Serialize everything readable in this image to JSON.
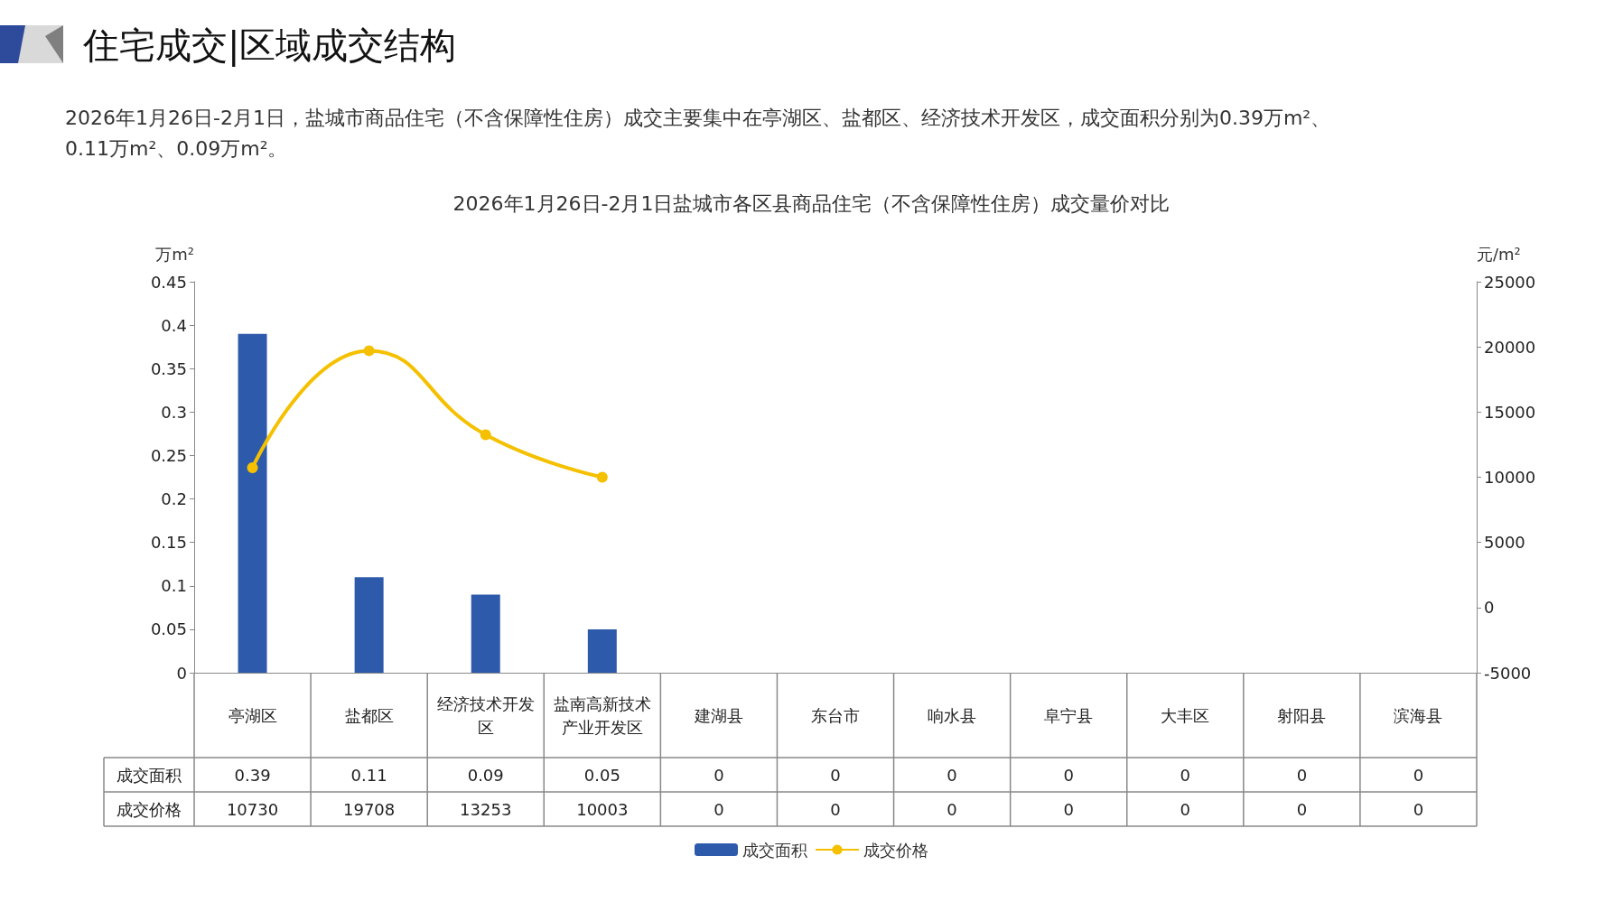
{
  "chart_data": {
    "type": "bar",
    "title": "住宅成交|区域成交结构",
    "subtitle": "2026年1月26日-2月1日，盐城市商品住宅（不含保障性住房）成交主要集中在亭湖区、盐都区、经济技术开发区，成交面积分别为0.39万m²、0.11万m²、0.09万m²。",
    "annotations": [
      "2026年1月26日-2月1日盐城市各区县商品住宅（不含保障性住房）成交量价对比"
    ],
    "ylabel": "万m²",
    "y2label": "元/m²",
    "categories": [
      "亭湖区",
      "盐都区",
      "经济技术开发区",
      "盐南高新技术产业开发区",
      "建湖县",
      "东台市",
      "响水县",
      "阜宁县",
      "大丰区",
      "射阳县",
      "滨海县"
    ],
    "series": [
      {
        "name": "成交面积",
        "color": "#2e5aac",
        "values": [
          0.39,
          0.11,
          0.09,
          0.05,
          0,
          0,
          0,
          0,
          0,
          0,
          0
        ],
        "value_labels": [
          "0.39",
          "0.11",
          "0.09",
          "0.05",
          "0",
          "0",
          "0",
          "0",
          "0",
          "0",
          "0"
        ]
      },
      {
        "name": "成交价格",
        "type": "line",
        "axis": "y2",
        "color": "#f5c000",
        "values": [
          10730,
          19708,
          13253,
          10003,
          null,
          null,
          null,
          null,
          null,
          null,
          null
        ],
        "value_labels": [
          "10730",
          "19708",
          "13253",
          "10003",
          "0",
          "0",
          "0",
          "0",
          "0",
          "0",
          "0"
        ]
      }
    ],
    "marker": "circle",
    "ylim": [
      0,
      0.45
    ],
    "yticks": [
      0,
      0.05,
      0.1,
      0.15,
      0.2,
      0.25,
      0.3,
      0.35,
      0.4,
      0.45
    ],
    "y2lim": [
      -5000,
      25000
    ],
    "y2ticks": [
      -5000,
      0,
      5000,
      10000,
      15000,
      20000,
      25000
    ],
    "grid": false,
    "legend": "bottom"
  }
}
